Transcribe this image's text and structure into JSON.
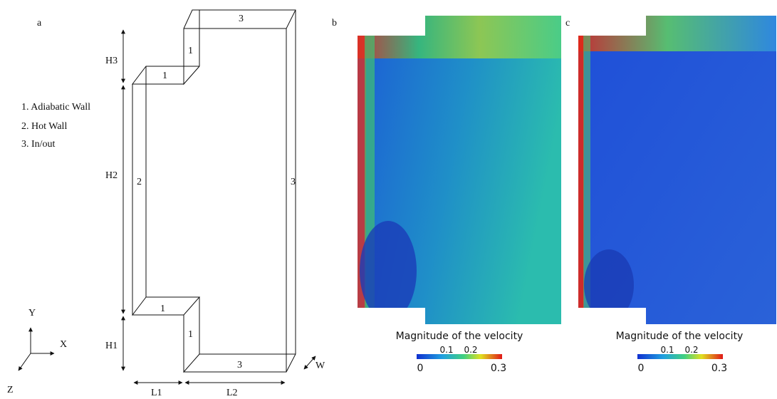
{
  "panels": {
    "a": {
      "label": "a",
      "legend": [
        "1. Adiabatic Wall",
        "2. Hot Wall",
        "3. In/out"
      ],
      "faces": [
        "3",
        "1",
        "1",
        "2",
        "3",
        "1",
        "1",
        "3"
      ],
      "dimensions": [
        "H3",
        "H2",
        "H1",
        "L1",
        "L2",
        "W"
      ],
      "axes": [
        "Y",
        "X",
        "Z"
      ]
    },
    "b": {
      "label": "b",
      "colorbar": {
        "title": "Magnitude of the velocity",
        "ticks": [
          "0",
          "0.1",
          "0.2",
          "0.3"
        ]
      }
    },
    "c": {
      "label": "c",
      "colorbar": {
        "title": "Magnitude of the velocity",
        "ticks": [
          "0",
          "0.1",
          "0.2",
          "0.3"
        ]
      }
    }
  }
}
